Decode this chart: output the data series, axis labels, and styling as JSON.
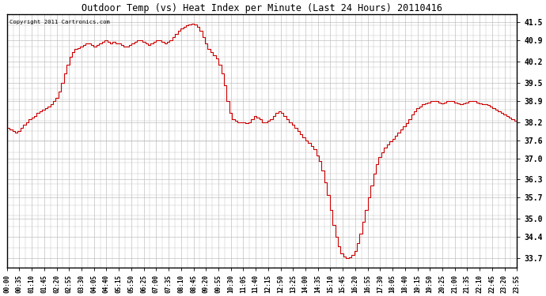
{
  "title": "Outdoor Temp (vs) Heat Index per Minute (Last 24 Hours) 20110416",
  "copyright_text": "Copyright 2011 Cartronics.com",
  "line_color": "#cc0000",
  "background_color": "#ffffff",
  "plot_background_color": "#ffffff",
  "grid_color": "#c0c0c0",
  "y_ticks": [
    33.7,
    34.4,
    35.0,
    35.7,
    36.3,
    37.0,
    37.6,
    38.2,
    38.9,
    39.5,
    40.2,
    40.9,
    41.5
  ],
  "ylim": [
    33.4,
    41.75
  ],
  "x_labels": [
    "00:00",
    "00:35",
    "01:10",
    "01:45",
    "02:20",
    "02:55",
    "03:30",
    "04:05",
    "04:40",
    "05:15",
    "05:50",
    "06:25",
    "07:00",
    "07:35",
    "08:10",
    "08:45",
    "09:20",
    "09:55",
    "10:30",
    "11:05",
    "11:40",
    "12:15",
    "12:50",
    "13:25",
    "14:00",
    "14:35",
    "15:10",
    "15:45",
    "16:20",
    "16:55",
    "17:30",
    "18:05",
    "18:40",
    "19:15",
    "19:50",
    "20:25",
    "21:00",
    "21:35",
    "22:10",
    "22:45",
    "23:20",
    "23:55"
  ],
  "data_y": [
    38.0,
    37.95,
    37.9,
    37.85,
    37.9,
    38.0,
    38.1,
    38.2,
    38.3,
    38.35,
    38.4,
    38.5,
    38.55,
    38.6,
    38.65,
    38.7,
    38.8,
    38.9,
    39.0,
    39.2,
    39.5,
    39.8,
    40.1,
    40.35,
    40.5,
    40.6,
    40.65,
    40.7,
    40.75,
    40.8,
    40.8,
    40.75,
    40.7,
    40.75,
    40.8,
    40.85,
    40.9,
    40.85,
    40.8,
    40.85,
    40.8,
    40.8,
    40.75,
    40.7,
    40.7,
    40.75,
    40.8,
    40.85,
    40.9,
    40.9,
    40.85,
    40.8,
    40.75,
    40.8,
    40.85,
    40.9,
    40.9,
    40.85,
    40.8,
    40.85,
    40.9,
    41.0,
    41.1,
    41.2,
    41.3,
    41.35,
    41.4,
    41.42,
    41.45,
    41.43,
    41.35,
    41.2,
    41.0,
    40.8,
    40.6,
    40.5,
    40.4,
    40.3,
    40.1,
    39.8,
    39.4,
    38.9,
    38.5,
    38.3,
    38.25,
    38.2,
    38.2,
    38.2,
    38.15,
    38.2,
    38.3,
    38.4,
    38.35,
    38.3,
    38.2,
    38.2,
    38.25,
    38.3,
    38.4,
    38.5,
    38.55,
    38.5,
    38.4,
    38.3,
    38.2,
    38.1,
    38.0,
    37.9,
    37.8,
    37.7,
    37.6,
    37.5,
    37.4,
    37.3,
    37.1,
    36.9,
    36.6,
    36.2,
    35.8,
    35.3,
    34.8,
    34.4,
    34.1,
    33.85,
    33.75,
    33.71,
    33.72,
    33.8,
    33.95,
    34.2,
    34.5,
    34.9,
    35.3,
    35.7,
    36.1,
    36.5,
    36.8,
    37.05,
    37.2,
    37.35,
    37.45,
    37.55,
    37.65,
    37.75,
    37.85,
    37.95,
    38.05,
    38.15,
    38.3,
    38.45,
    38.55,
    38.65,
    38.72,
    38.78,
    38.82,
    38.85,
    38.88,
    38.9,
    38.88,
    38.85,
    38.82,
    38.85,
    38.88,
    38.9,
    38.88,
    38.85,
    38.82,
    38.8,
    38.82,
    38.85,
    38.88,
    38.9,
    38.88,
    38.85,
    38.82,
    38.8,
    38.78,
    38.75,
    38.7,
    38.65,
    38.6,
    38.55,
    38.5,
    38.45,
    38.4,
    38.35,
    38.3,
    38.25,
    38.2
  ]
}
